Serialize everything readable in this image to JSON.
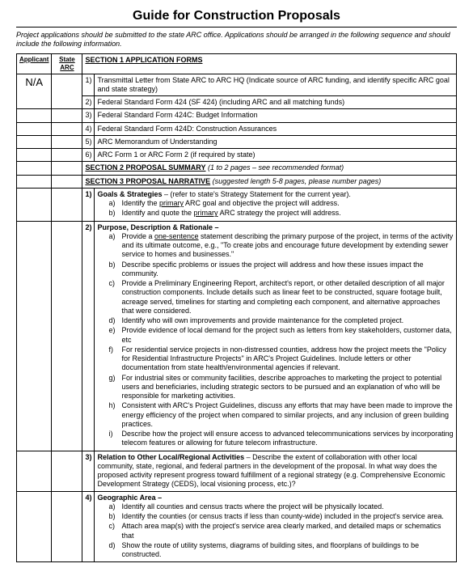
{
  "title": "Guide for Construction Proposals",
  "subtitle": "Project applications should be submitted to the state ARC office. Applications should be arranged in the following sequence and should include the following information.",
  "hdr_applicant": "Applicant",
  "hdr_state": "State ARC",
  "na": "N/A",
  "sec1_title": "SECTION 1  APPLICATION FORMS",
  "sec1": [
    {
      "n": "1)",
      "t": "Transmittal Letter from State ARC to ARC HQ (Indicate source of ARC funding, and identify specific ARC goal and state strategy)"
    },
    {
      "n": "2)",
      "t": "Federal Standard Form 424 (SF 424) (including ARC and all matching funds)"
    },
    {
      "n": "3)",
      "t": "Federal Standard Form 424C: Budget Information"
    },
    {
      "n": "4)",
      "t": "Federal Standard Form 424D: Construction Assurances"
    },
    {
      "n": "5)",
      "t": "ARC Memorandum of Understanding"
    },
    {
      "n": "6)",
      "t": "ARC Form 1 or ARC Form 2 (if required by state)"
    }
  ],
  "sec2_title": "SECTION 2  PROPOSAL SUMMARY",
  "sec2_note": "  (1 to 2 pages – see recommended format)",
  "sec3_title": "SECTION 3  PROPOSAL NARRATIVE",
  "sec3_note": "  (suggested length 5-8 pages, please number pages)",
  "item1_n": "1)",
  "item1_lead": "Goals & Strategies",
  "item1_rest": " – (refer to state's Strategy Statement for the current year).",
  "item1a_l": "a)",
  "item1a_t1": "Identify the ",
  "item1a_u": "primary",
  "item1a_t2": " ARC goal and objective the project will address.",
  "item1b_l": "b)",
  "item1b_t1": "Identify and quote the ",
  "item1b_u": "primary",
  "item1b_t2": " ARC strategy the project will address.",
  "item2_n": "2)",
  "item2_lead": "Purpose, Description & Rationale –",
  "item2a_l": "a)",
  "item2a_t1": "Provide a ",
  "item2a_u": "one-sentence",
  "item2a_t2": " statement describing the primary purpose of the project, in terms of the activity and its ultimate outcome, e.g., \"To create jobs and encourage future development by extending sewer service to homes and businesses.\"",
  "item2b_l": "b)",
  "item2b_t": "Describe specific problems or issues the project will address and how these issues impact the community.",
  "item2c_l": "c)",
  "item2c_t": "Provide a Preliminary Engineering Report, architect's report, or other detailed description of all major construction components. Include details such as linear feet to be constructed, square footage built, acreage served, timelines for starting and completing each component, and alternative approaches that were considered.",
  "item2d_l": "d)",
  "item2d_t": "Identify who will own improvements and provide maintenance for the completed project.",
  "item2e_l": "e)",
  "item2e_t": "Provide evidence of local demand for the project such as letters from key stakeholders, customer data, etc",
  "item2f_l": "f)",
  "item2f_t": "For residential service projects in non-distressed counties, address how the project meets the \"Policy for Residential Infrastructure Projects\" in ARC's Project Guidelines. Include letters or other documentation from state health/environmental agencies if relevant.",
  "item2g_l": "g)",
  "item2g_t": "For industrial sites or community facilities, describe approaches to marketing the project to potential users and beneficiaries, including strategic sectors to be pursued and an explanation of who will be responsible for marketing activities.",
  "item2h_l": "h)",
  "item2h_t": "Consistent with ARC's Project Guidelines, discuss any efforts that may have been made to improve the energy efficiency of the project when compared to similar projects, and any inclusion of green building practices.",
  "item2i_l": "i)",
  "item2i_t": "Describe how the project will ensure access to advanced telecommunications services by incorporating telecom features or allowing for future telecom infrastructure.",
  "item3_n": "3)",
  "item3_lead": "Relation to Other Local/Regional Activities",
  "item3_rest": " – Describe the extent of collaboration with other local community, state, regional, and federal partners in the development of the proposal. In what way does the proposed activity represent progress toward fulfillment of a regional strategy (e.g. Comprehensive Economic Development Strategy (CEDS), local visioning process, etc.)?",
  "item4_n": "4)",
  "item4_lead": "Geographic Area –",
  "item4a_l": "a)",
  "item4a_t": "Identify all counties and census tracts where the project will be physically located.",
  "item4b_l": "b)",
  "item4b_t": "Identify the counties (or census tracts if less than county-wide) included in the project's service area.",
  "item4c_l": "c)",
  "item4c_t": "Attach area map(s) with the project's service area clearly marked, and detailed maps or schematics that",
  "item4d_l": "d)",
  "item4d_t": "Show the route of utility systems, diagrams of building sites, and floorplans of buildings to be constructed."
}
